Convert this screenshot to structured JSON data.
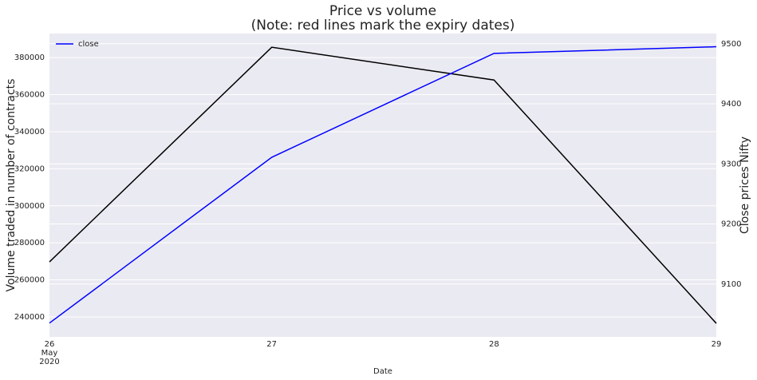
{
  "chart_data": {
    "type": "line",
    "title": "Price vs volume",
    "subtitle": "(Note: red lines mark the expiry dates)",
    "x_label": "Date",
    "y_label": "Volume traded in number of contracts",
    "y2_label": "Close prices Nifty",
    "categories": [
      "26",
      "27",
      "28",
      "29"
    ],
    "x_secondary_labels": [
      "May",
      "2020"
    ],
    "series": [
      {
        "color": "#000000",
        "values": [
          269700,
          385600,
          367900,
          236500
        ]
      },
      {
        "name": "close",
        "color": "#0000ff",
        "axis": "y2",
        "values": [
          9035,
          9311,
          9484,
          9495
        ]
      }
    ],
    "ylim": [
      229200,
      393000
    ],
    "yticks": [
      240000,
      260000,
      280000,
      300000,
      320000,
      340000,
      360000,
      380000
    ],
    "y2lim": [
      9012,
      9517
    ],
    "y2ticks": [
      9100,
      9200,
      9300,
      9400,
      9500
    ],
    "grid": true,
    "legend": "upper-left"
  }
}
